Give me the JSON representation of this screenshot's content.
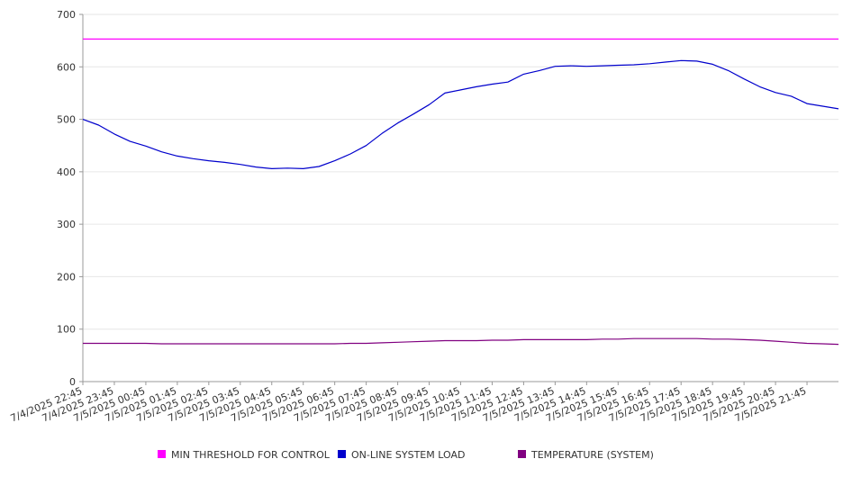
{
  "chart_data": {
    "type": "line",
    "title": "",
    "xlabel": "",
    "ylabel": "",
    "ylim": [
      0,
      700
    ],
    "yticks": [
      0,
      100,
      200,
      300,
      400,
      500,
      600,
      700
    ],
    "grid": true,
    "legend_position": "bottom",
    "xtick_labels": [
      "7/4/2025 22:45",
      "7/4/2025 23:45",
      "7/5/2025 00:45",
      "7/5/2025 01:45",
      "7/5/2025 02:45",
      "7/5/2025 03:45",
      "7/5/2025 04:45",
      "7/5/2025 05:45",
      "7/5/2025 06:45",
      "7/5/2025 07:45",
      "7/5/2025 08:45",
      "7/5/2025 09:45",
      "7/5/2025 10:45",
      "7/5/2025 11:45",
      "7/5/2025 12:45",
      "7/5/2025 13:45",
      "7/5/2025 14:45",
      "7/5/2025 15:45",
      "7/5/2025 16:45",
      "7/5/2025 17:45",
      "7/5/2025 18:45",
      "7/5/2025 19:45",
      "7/5/2025 20:45",
      "7/5/2025 21:45"
    ],
    "x": [
      "7/4/2025 22:45",
      "7/4/2025 23:15",
      "7/4/2025 23:45",
      "7/5/2025 00:15",
      "7/5/2025 00:45",
      "7/5/2025 01:15",
      "7/5/2025 01:45",
      "7/5/2025 02:15",
      "7/5/2025 02:45",
      "7/5/2025 03:15",
      "7/5/2025 03:45",
      "7/5/2025 04:15",
      "7/5/2025 04:45",
      "7/5/2025 05:15",
      "7/5/2025 05:45",
      "7/5/2025 06:15",
      "7/5/2025 06:45",
      "7/5/2025 07:15",
      "7/5/2025 07:45",
      "7/5/2025 08:15",
      "7/5/2025 08:45",
      "7/5/2025 09:15",
      "7/5/2025 09:45",
      "7/5/2025 10:15",
      "7/5/2025 10:45",
      "7/5/2025 11:15",
      "7/5/2025 11:45",
      "7/5/2025 12:15",
      "7/5/2025 12:45",
      "7/5/2025 13:15",
      "7/5/2025 13:45",
      "7/5/2025 14:15",
      "7/5/2025 14:45",
      "7/5/2025 15:15",
      "7/5/2025 15:45",
      "7/5/2025 16:15",
      "7/5/2025 16:45",
      "7/5/2025 17:15",
      "7/5/2025 17:45",
      "7/5/2025 18:15",
      "7/5/2025 18:45",
      "7/5/2025 19:15",
      "7/5/2025 19:45",
      "7/5/2025 20:15",
      "7/5/2025 20:45",
      "7/5/2025 21:15",
      "7/5/2025 21:45",
      "7/5/2025 22:15",
      "7/5/2025 22:45"
    ],
    "series": [
      {
        "name": "MIN THRESHOLD FOR CONTROL",
        "color": "#ff00ff",
        "values": [
          653,
          653,
          653,
          653,
          653,
          653,
          653,
          653,
          653,
          653,
          653,
          653,
          653,
          653,
          653,
          653,
          653,
          653,
          653,
          653,
          653,
          653,
          653,
          653,
          653,
          653,
          653,
          653,
          653,
          653,
          653,
          653,
          653,
          653,
          653,
          653,
          653,
          653,
          653,
          653,
          653,
          653,
          653,
          653,
          653,
          653,
          653,
          653,
          653
        ]
      },
      {
        "name": "ON-LINE SYSTEM LOAD",
        "color": "#0000cc",
        "values": [
          500,
          489,
          472,
          458,
          449,
          438,
          430,
          425,
          421,
          418,
          414,
          409,
          406,
          407,
          406,
          410,
          421,
          434,
          450,
          473,
          493,
          510,
          528,
          550,
          556,
          562,
          567,
          571,
          586,
          593,
          601,
          602,
          601,
          602,
          603,
          604,
          606,
          609,
          612,
          611,
          605,
          593,
          577,
          562,
          551,
          544,
          530,
          525,
          520
        ]
      },
      {
        "name": "TEMPERATURE (SYSTEM)",
        "color": "#800080",
        "values": [
          73,
          73,
          73,
          73,
          73,
          72,
          72,
          72,
          72,
          72,
          72,
          72,
          72,
          72,
          72,
          72,
          72,
          73,
          73,
          74,
          75,
          76,
          77,
          78,
          78,
          78,
          79,
          79,
          80,
          80,
          80,
          80,
          80,
          81,
          81,
          82,
          82,
          82,
          82,
          82,
          81,
          81,
          80,
          79,
          77,
          75,
          73,
          72,
          71
        ]
      }
    ]
  }
}
